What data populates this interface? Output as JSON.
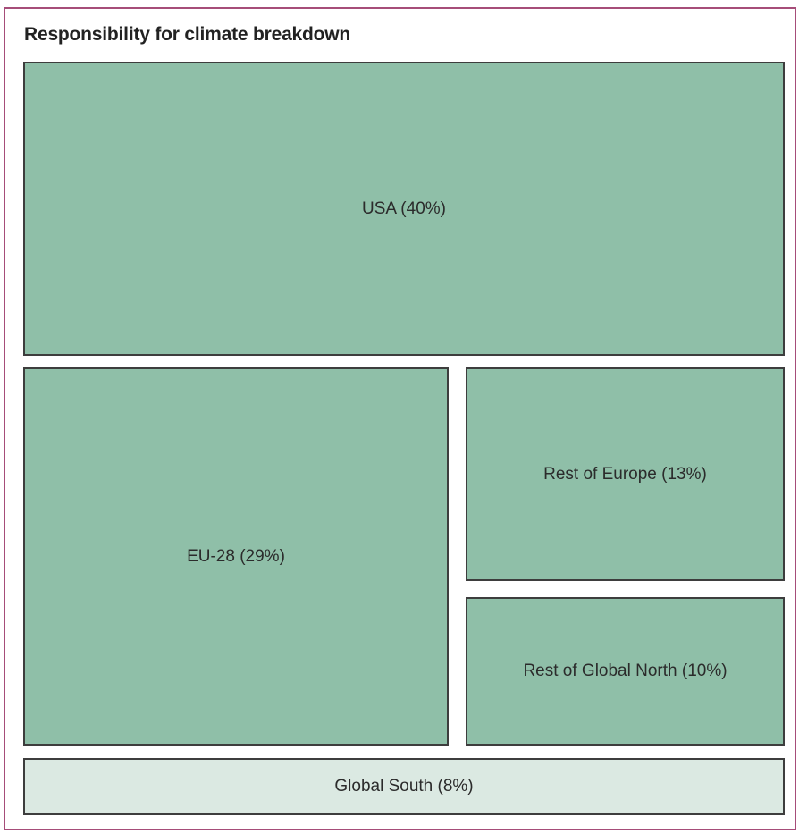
{
  "chart_data": {
    "type": "treemap",
    "title": "Responsibility for climate breakdown",
    "categories": [
      "USA",
      "EU-28",
      "Rest of Europe",
      "Rest of Global North",
      "Global South"
    ],
    "values": [
      40,
      29,
      13,
      10,
      8
    ],
    "unit": "%",
    "labels": {
      "usa": "USA (40%)",
      "eu28": "EU-28 (29%)",
      "rest_europe": "Rest of Europe (13%)",
      "rest_global_north": "Rest of Global North (10%)",
      "global_south": "Global South (8%)"
    },
    "colors": {
      "global_north": "#8fbfa8",
      "global_south": "#dbe9e2",
      "border": "#3d3d3d",
      "frame": "#a64d79"
    }
  }
}
